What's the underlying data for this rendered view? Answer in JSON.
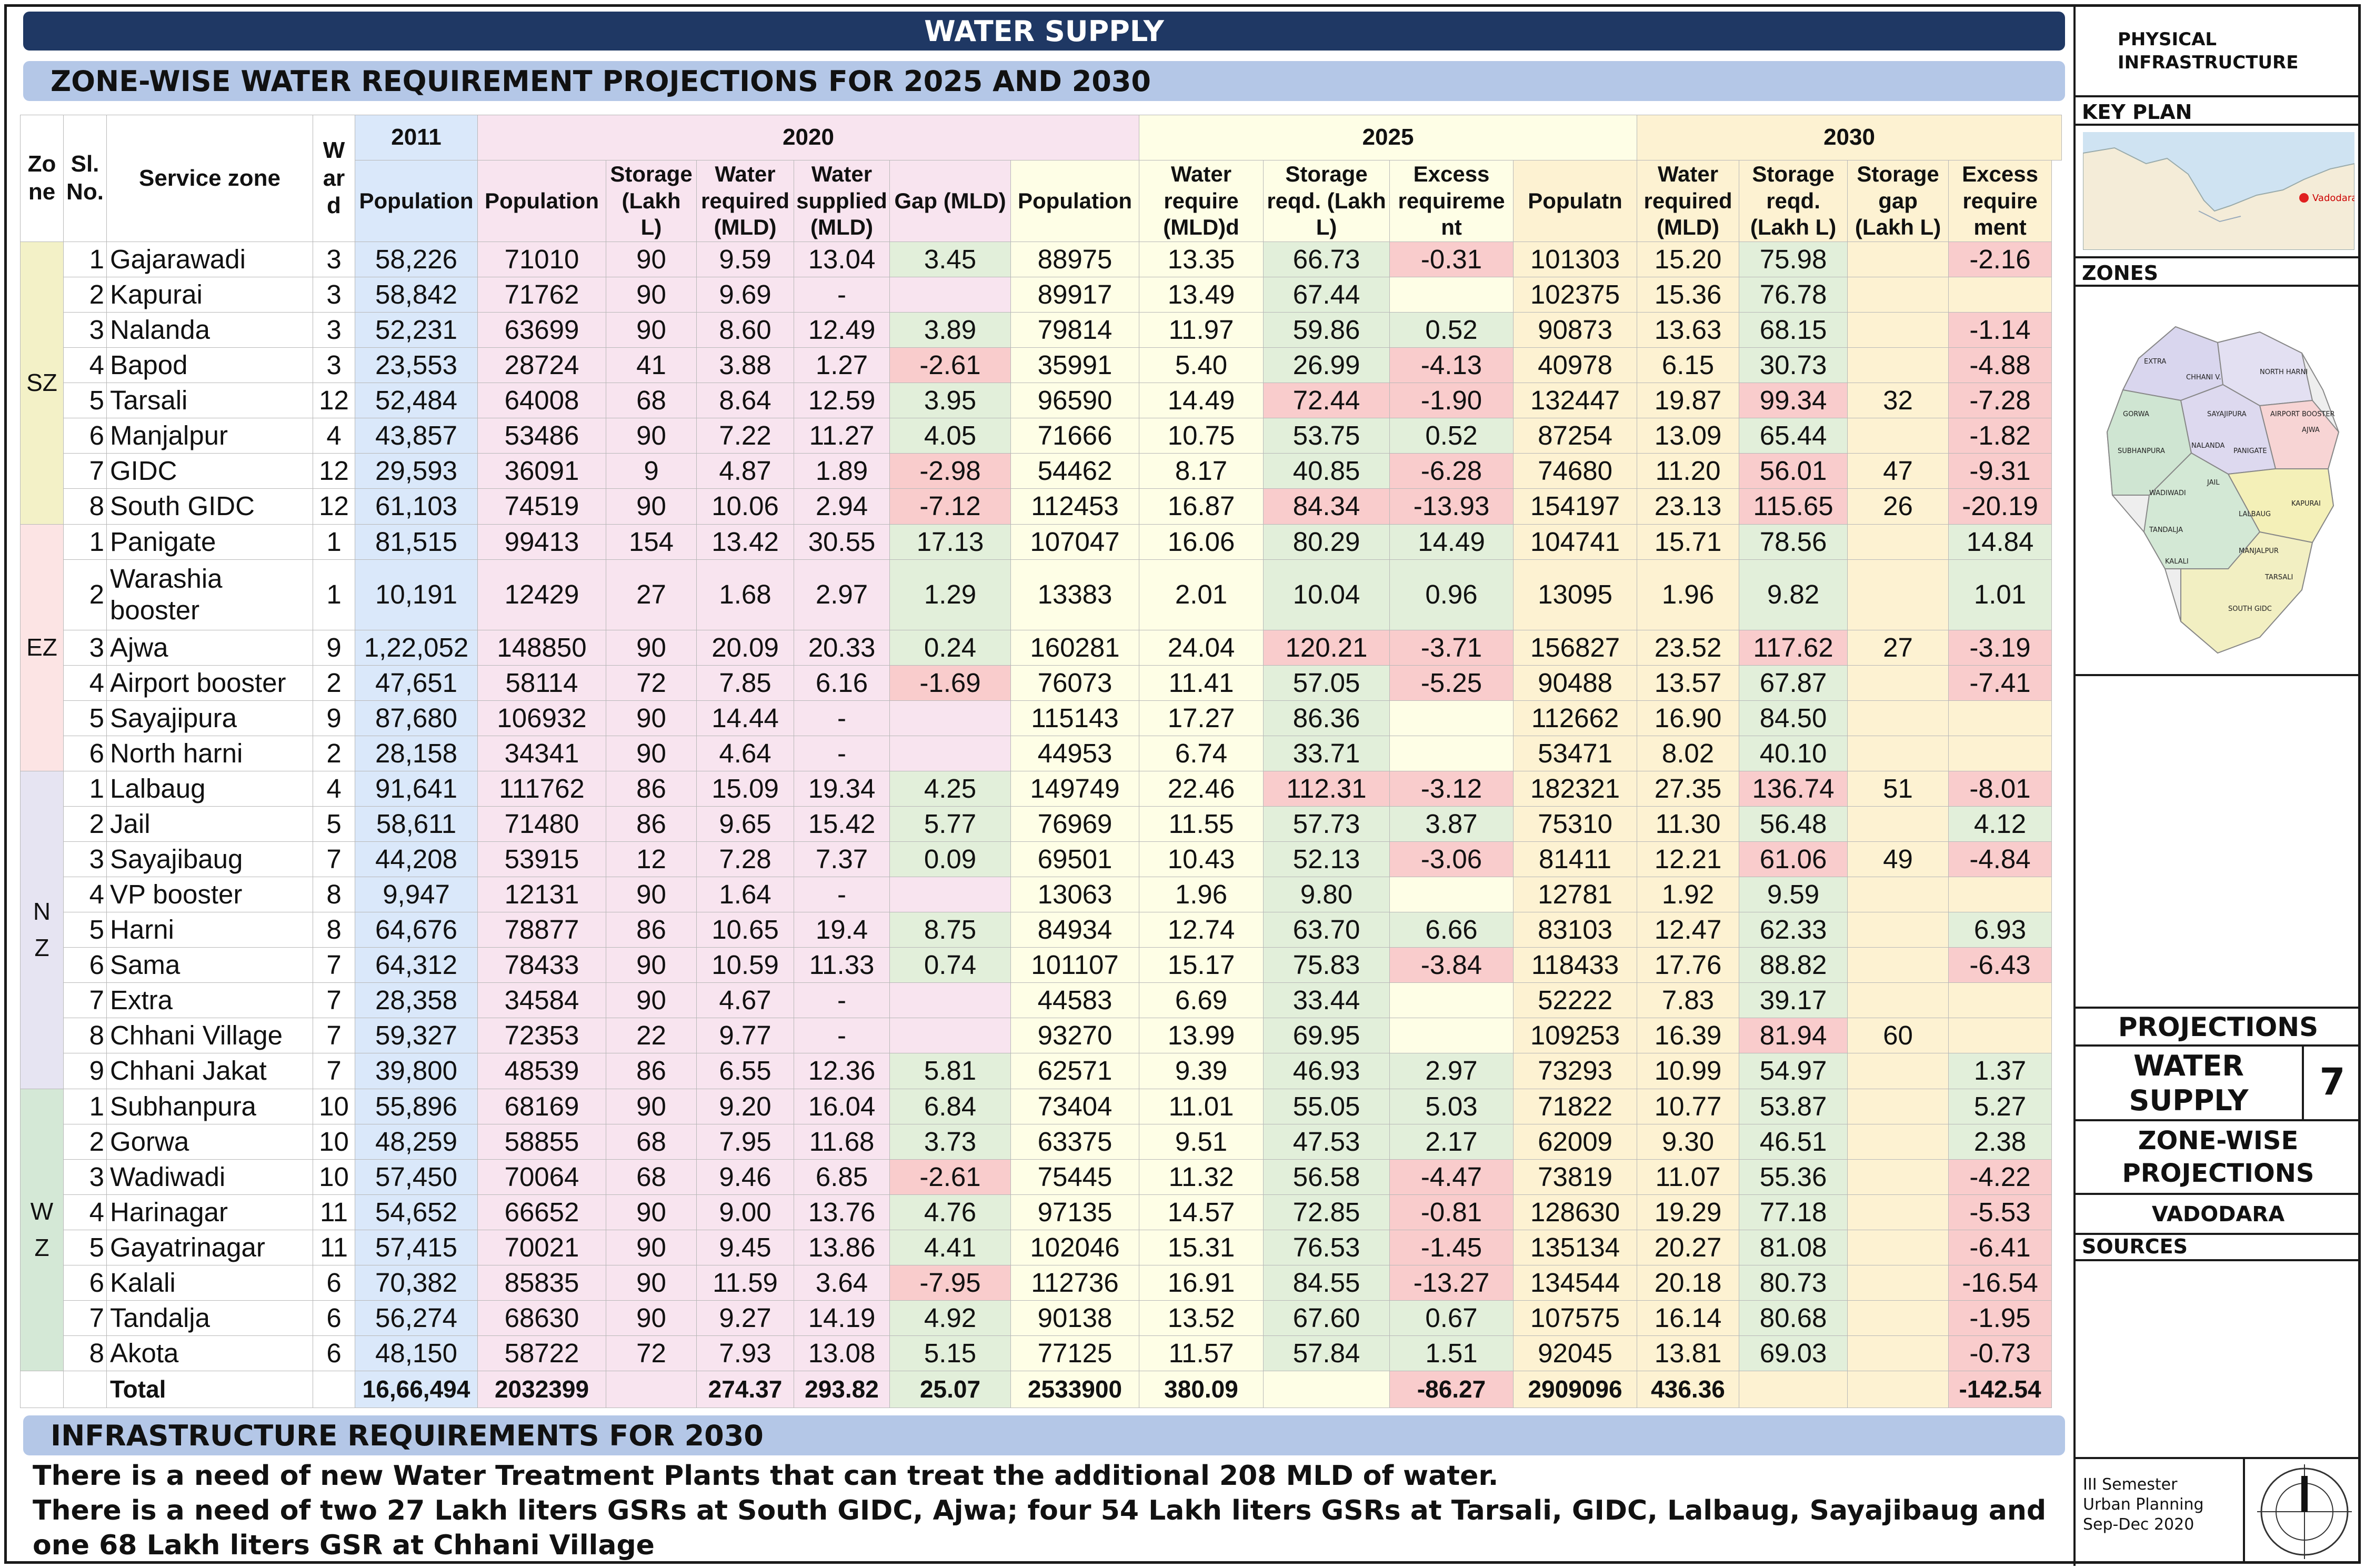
{
  "title": "WATER SUPPLY",
  "subtitle": "ZONE-WISE WATER REQUIREMENT PROJECTIONS FOR 2025 AND 2030",
  "headers": {
    "zone": "Zo ne",
    "sl": "Sl. No.",
    "service_zone": "Service zone",
    "ward": "W ar d",
    "y2011": "2011",
    "y2020": "2020",
    "y2025": "2025",
    "y2030": "2030",
    "pop2011": "Population",
    "pop2020": "Population",
    "storage2020": "Storage (Lakh L)",
    "wreq2020": "Water required (MLD)",
    "wsup2020": "Water supplied (MLD)",
    "gap2020": "Gap (MLD)",
    "pop2025": "Population",
    "wreq2025": "Water require (MLD)d",
    "stor2025": "Storage reqd. (Lakh L)",
    "exc2025": "Excess requireme nt",
    "pop2030": "Populatn",
    "wreq2030": "Water required (MLD)",
    "stor2030": "Storage reqd. (Lakh L)",
    "sgap2030": "Storage gap (Lakh L)",
    "exc2030": "Excess require ment"
  },
  "zones": {
    "SZ": "SZ",
    "EZ": "EZ",
    "NZ": "N Z",
    "WZ": "W Z"
  },
  "rows": [
    [
      "1",
      "Gajarawadi",
      "3",
      "58,226",
      "71010",
      "90",
      "9.59",
      "13.04",
      "3.45",
      "88975",
      "13.35",
      "66.73",
      "-0.31",
      "101303",
      "15.20",
      "75.98",
      "",
      "-2.16"
    ],
    [
      "2",
      "Kapurai",
      "3",
      "58,842",
      "71762",
      "90",
      "9.69",
      "-",
      "",
      "89917",
      "13.49",
      "67.44",
      "",
      "102375",
      "15.36",
      "76.78",
      "",
      ""
    ],
    [
      "3",
      "Nalanda",
      "3",
      "52,231",
      "63699",
      "90",
      "8.60",
      "12.49",
      "3.89",
      "79814",
      "11.97",
      "59.86",
      "0.52",
      "90873",
      "13.63",
      "68.15",
      "",
      "-1.14"
    ],
    [
      "4",
      "Bapod",
      "3",
      "23,553",
      "28724",
      "41",
      "3.88",
      "1.27",
      "-2.61",
      "35991",
      "5.40",
      "26.99",
      "-4.13",
      "40978",
      "6.15",
      "30.73",
      "",
      "-4.88"
    ],
    [
      "5",
      "Tarsali",
      "12",
      "52,484",
      "64008",
      "68",
      "8.64",
      "12.59",
      "3.95",
      "96590",
      "14.49",
      "72.44",
      "-1.90",
      "132447",
      "19.87",
      "99.34",
      "32",
      "-7.28"
    ],
    [
      "6",
      "Manjalpur",
      "4",
      "43,857",
      "53486",
      "90",
      "7.22",
      "11.27",
      "4.05",
      "71666",
      "10.75",
      "53.75",
      "0.52",
      "87254",
      "13.09",
      "65.44",
      "",
      "-1.82"
    ],
    [
      "7",
      "GIDC",
      "12",
      "29,593",
      "36091",
      "9",
      "4.87",
      "1.89",
      "-2.98",
      "54462",
      "8.17",
      "40.85",
      "-6.28",
      "74680",
      "11.20",
      "56.01",
      "47",
      "-9.31"
    ],
    [
      "8",
      "South GIDC",
      "12",
      "61,103",
      "74519",
      "90",
      "10.06",
      "2.94",
      "-7.12",
      "112453",
      "16.87",
      "84.34",
      "-13.93",
      "154197",
      "23.13",
      "115.65",
      "26",
      "-20.19"
    ],
    [
      "1",
      "Panigate",
      "1",
      "81,515",
      "99413",
      "154",
      "13.42",
      "30.55",
      "17.13",
      "107047",
      "16.06",
      "80.29",
      "14.49",
      "104741",
      "15.71",
      "78.56",
      "",
      "14.84"
    ],
    [
      "2",
      "Warashia booster",
      "1",
      "10,191",
      "12429",
      "27",
      "1.68",
      "2.97",
      "1.29",
      "13383",
      "2.01",
      "10.04",
      "0.96",
      "13095",
      "1.96",
      "9.82",
      "",
      "1.01"
    ],
    [
      "3",
      "Ajwa",
      "9",
      "1,22,052",
      "148850",
      "90",
      "20.09",
      "20.33",
      "0.24",
      "160281",
      "24.04",
      "120.21",
      "-3.71",
      "156827",
      "23.52",
      "117.62",
      "27",
      "-3.19"
    ],
    [
      "4",
      "Airport booster",
      "2",
      "47,651",
      "58114",
      "72",
      "7.85",
      "6.16",
      "-1.69",
      "76073",
      "11.41",
      "57.05",
      "-5.25",
      "90488",
      "13.57",
      "67.87",
      "",
      "-7.41"
    ],
    [
      "5",
      "Sayajipura",
      "9",
      "87,680",
      "106932",
      "90",
      "14.44",
      "-",
      "",
      "115143",
      "17.27",
      "86.36",
      "",
      "112662",
      "16.90",
      "84.50",
      "",
      ""
    ],
    [
      "6",
      "North harni",
      "2",
      "28,158",
      "34341",
      "90",
      "4.64",
      "-",
      "",
      "44953",
      "6.74",
      "33.71",
      "",
      "53471",
      "8.02",
      "40.10",
      "",
      ""
    ],
    [
      "1",
      "Lalbaug",
      "4",
      "91,641",
      "111762",
      "86",
      "15.09",
      "19.34",
      "4.25",
      "149749",
      "22.46",
      "112.31",
      "-3.12",
      "182321",
      "27.35",
      "136.74",
      "51",
      "-8.01"
    ],
    [
      "2",
      "Jail",
      "5",
      "58,611",
      "71480",
      "86",
      "9.65",
      "15.42",
      "5.77",
      "76969",
      "11.55",
      "57.73",
      "3.87",
      "75310",
      "11.30",
      "56.48",
      "",
      "4.12"
    ],
    [
      "3",
      "Sayajibaug",
      "7",
      "44,208",
      "53915",
      "12",
      "7.28",
      "7.37",
      "0.09",
      "69501",
      "10.43",
      "52.13",
      "-3.06",
      "81411",
      "12.21",
      "61.06",
      "49",
      "-4.84"
    ],
    [
      "4",
      "VP booster",
      "8",
      "9,947",
      "12131",
      "90",
      "1.64",
      "-",
      "",
      "13063",
      "1.96",
      "9.80",
      "",
      "12781",
      "1.92",
      "9.59",
      "",
      ""
    ],
    [
      "5",
      "Harni",
      "8",
      "64,676",
      "78877",
      "86",
      "10.65",
      "19.4",
      "8.75",
      "84934",
      "12.74",
      "63.70",
      "6.66",
      "83103",
      "12.47",
      "62.33",
      "",
      "6.93"
    ],
    [
      "6",
      "Sama",
      "7",
      "64,312",
      "78433",
      "90",
      "10.59",
      "11.33",
      "0.74",
      "101107",
      "15.17",
      "75.83",
      "-3.84",
      "118433",
      "17.76",
      "88.82",
      "",
      "-6.43"
    ],
    [
      "7",
      "Extra",
      "7",
      "28,358",
      "34584",
      "90",
      "4.67",
      "-",
      "",
      "44583",
      "6.69",
      "33.44",
      "",
      "52222",
      "7.83",
      "39.17",
      "",
      ""
    ],
    [
      "8",
      "Chhani Village",
      "7",
      "59,327",
      "72353",
      "22",
      "9.77",
      "-",
      "",
      "93270",
      "13.99",
      "69.95",
      "",
      "109253",
      "16.39",
      "81.94",
      "60",
      ""
    ],
    [
      "9",
      "Chhani Jakat",
      "7",
      "39,800",
      "48539",
      "86",
      "6.55",
      "12.36",
      "5.81",
      "62571",
      "9.39",
      "46.93",
      "2.97",
      "73293",
      "10.99",
      "54.97",
      "",
      "1.37"
    ],
    [
      "1",
      "Subhanpura",
      "10",
      "55,896",
      "68169",
      "90",
      "9.20",
      "16.04",
      "6.84",
      "73404",
      "11.01",
      "55.05",
      "5.03",
      "71822",
      "10.77",
      "53.87",
      "",
      "5.27"
    ],
    [
      "2",
      "Gorwa",
      "10",
      "48,259",
      "58855",
      "68",
      "7.95",
      "11.68",
      "3.73",
      "63375",
      "9.51",
      "47.53",
      "2.17",
      "62009",
      "9.30",
      "46.51",
      "",
      "2.38"
    ],
    [
      "3",
      "Wadiwadi",
      "10",
      "57,450",
      "70064",
      "68",
      "9.46",
      "6.85",
      "-2.61",
      "75445",
      "11.32",
      "56.58",
      "-4.47",
      "73819",
      "11.07",
      "55.36",
      "",
      "-4.22"
    ],
    [
      "4",
      "Harinagar",
      "11",
      "54,652",
      "66652",
      "90",
      "9.00",
      "13.76",
      "4.76",
      "97135",
      "14.57",
      "72.85",
      "-0.81",
      "128630",
      "19.29",
      "77.18",
      "",
      "-5.53"
    ],
    [
      "5",
      "Gayatrinagar",
      "11",
      "57,415",
      "70021",
      "90",
      "9.45",
      "13.86",
      "4.41",
      "102046",
      "15.31",
      "76.53",
      "-1.45",
      "135134",
      "20.27",
      "81.08",
      "",
      "-6.41"
    ],
    [
      "6",
      "Kalali",
      "6",
      "70,382",
      "85835",
      "90",
      "11.59",
      "3.64",
      "-7.95",
      "112736",
      "16.91",
      "84.55",
      "-13.27",
      "134544",
      "20.18",
      "80.73",
      "",
      "-16.54"
    ],
    [
      "7",
      "Tandalja",
      "6",
      "56,274",
      "68630",
      "90",
      "9.27",
      "14.19",
      "4.92",
      "90138",
      "13.52",
      "67.60",
      "0.67",
      "107575",
      "16.14",
      "80.68",
      "",
      "-1.95"
    ],
    [
      "8",
      "Akota",
      "6",
      "48,150",
      "58722",
      "72",
      "7.93",
      "13.08",
      "5.15",
      "77125",
      "11.57",
      "57.84",
      "1.51",
      "92045",
      "13.81",
      "69.03",
      "",
      "-0.73"
    ]
  ],
  "total": {
    "label": "Total",
    "pop2011": "16,66,494",
    "pop2020": "2032399",
    "wreq2020": "274.37",
    "wsup2020": "293.82",
    "gap2020": "25.07",
    "pop2025": "2533900",
    "wreq2025": "380.09",
    "exc2025": "-86.27",
    "pop2030": "2909096",
    "wreq2030": "436.36",
    "exc2030": "-142.54"
  },
  "infra": {
    "title": "INFRASTRUCTURE REQUIREMENTS FOR 2030",
    "line1": "There is a need of new Water Treatment Plants that can treat the additional 208 MLD of water.",
    "line2": "There is a need of two 27 Lakh liters GSRs at South GIDC, Ajwa; four 54 Lakh liters GSRs at Tarsali, GIDC, Lalbaug, Sayajibaug and",
    "line3": "one 68 Lakh liters GSR at Chhani Village"
  },
  "sidebar": {
    "category_line1": "PHYSICAL",
    "category_line2": "INFRASTRUCTURE",
    "key_plan": "KEY PLAN",
    "key_plan_city": "Vadodara",
    "zones": "ZONES",
    "map_labels": [
      "EXTRA",
      "CHHANI V.",
      "NORTH HARNI",
      "AJWA",
      "AIRPORT BOOSTER",
      "SAYAJIPURA",
      "GORWA",
      "SUBHANPURA",
      "NALANDA",
      "PANIGATE",
      "JAIL",
      "WADIWADI",
      "TANDALJA",
      "LALBAUG",
      "KAPURAI",
      "MANJALPUR",
      "KALALI",
      "SOUTH GIDC",
      "TARSALI"
    ],
    "projections": "PROJECTIONS",
    "sheet_title_line1": "WATER",
    "sheet_title_line2": "SUPPLY",
    "sheet_no": "7",
    "zone_wise_line1": "ZONE-WISE",
    "zone_wise_line2": "PROJECTIONS",
    "city": "VADODARA",
    "sources": "SOURCES",
    "semester": "III Semester",
    "course": "Urban Planning",
    "period": "Sep-Dec 2020"
  }
}
